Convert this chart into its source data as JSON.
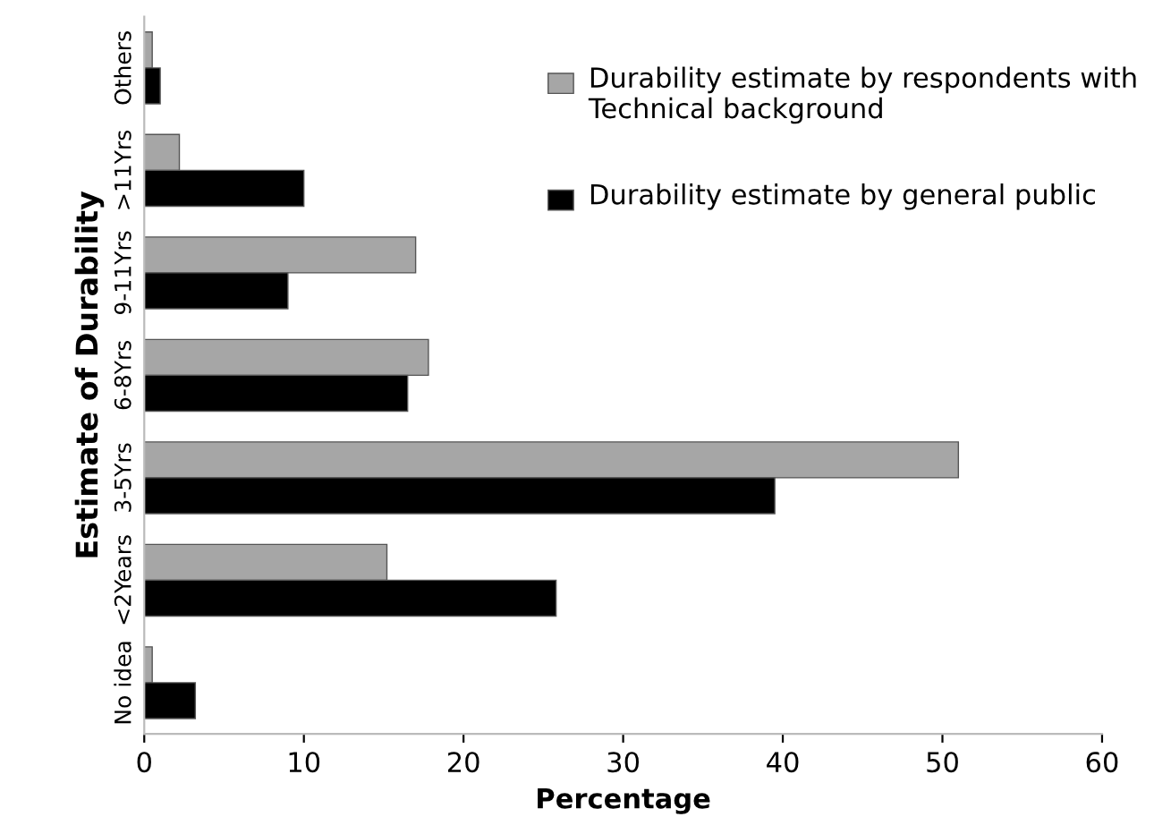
{
  "chart_data": {
    "type": "bar",
    "orientation": "horizontal",
    "xlabel": "Percentage",
    "ylabel": "Estimate of Durability",
    "categories": [
      "Others",
      ">11Yrs",
      "9-11Yrs",
      "6-8Yrs",
      "3-5Yrs",
      "<2Years",
      "No idea"
    ],
    "series": [
      {
        "name": "Durability estimate by respondents with Technical background",
        "color": "#a6a6a6",
        "values": [
          0.5,
          2.2,
          17,
          17.8,
          51,
          15.2,
          0.5
        ]
      },
      {
        "name": "Durability estimate by general public",
        "color": "#000000",
        "values": [
          1,
          10,
          9,
          16.5,
          39.5,
          25.8,
          3.2
        ]
      }
    ],
    "xlim": [
      0,
      60
    ],
    "xticks": [
      0,
      10,
      20,
      30,
      40,
      50,
      60
    ],
    "grid": false,
    "legend": "top right"
  }
}
